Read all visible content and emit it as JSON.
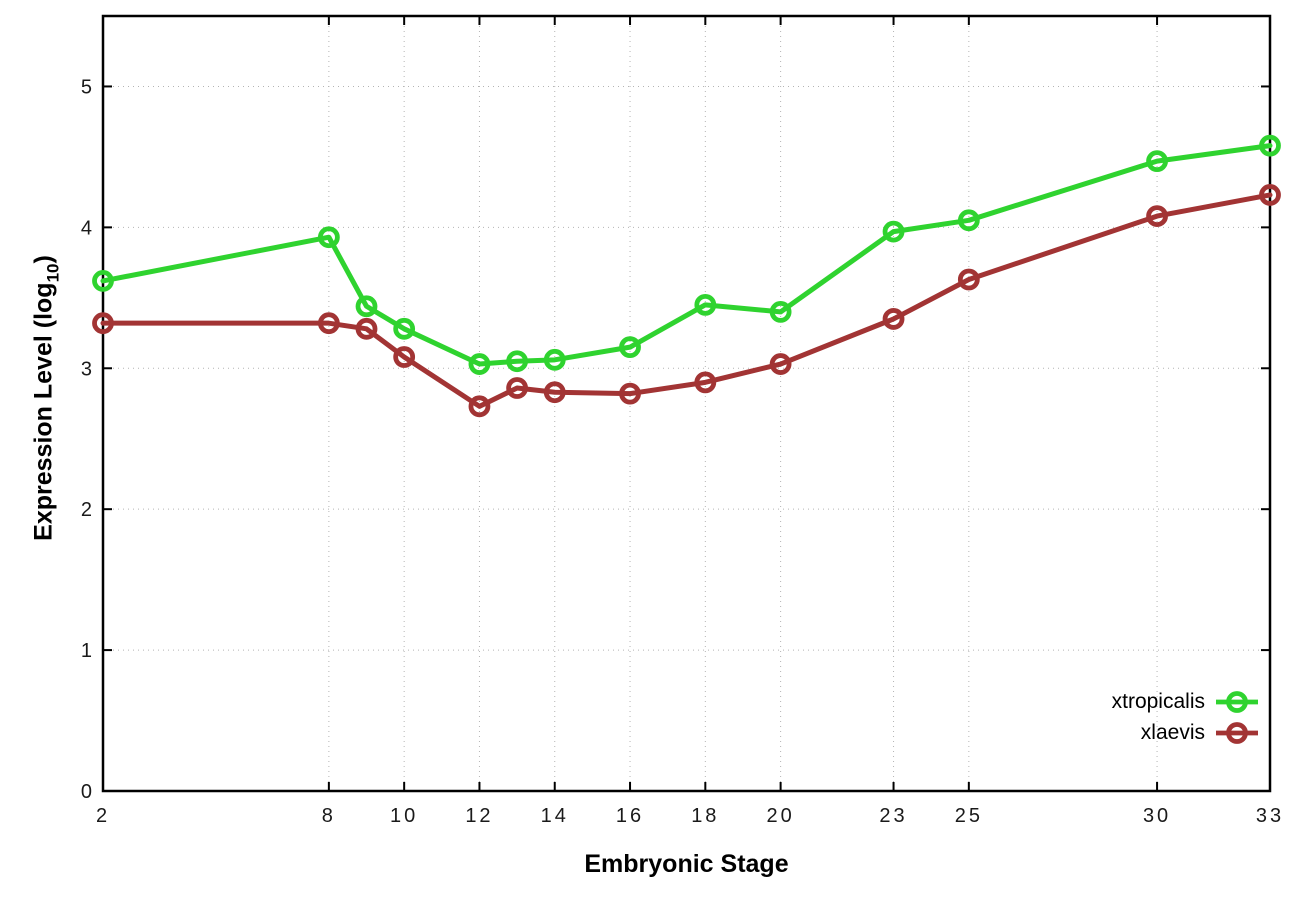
{
  "chart_data": {
    "type": "line",
    "title": "",
    "xlabel": "Embryonic Stage",
    "ylabel": "Expression Level (log10)",
    "ylabel_text": "Expression Level (log",
    "ylabel_sub": "10",
    "ylabel_suffix": ")",
    "xlim": [
      2,
      33
    ],
    "ylim": [
      0,
      5.5
    ],
    "xticks": [
      2,
      8,
      10,
      12,
      14,
      16,
      18,
      20,
      23,
      25,
      30,
      33
    ],
    "yticks": [
      0,
      1,
      2,
      3,
      4,
      5
    ],
    "grid": true,
    "legend_position": "inside bottom-right",
    "x": [
      2,
      8,
      9,
      10,
      12,
      13,
      14,
      16,
      18,
      20,
      23,
      25,
      30,
      33
    ],
    "series": [
      {
        "name": "xtropicalis",
        "color": "#2fd32f",
        "marker": "open-circle",
        "values": [
          3.62,
          3.93,
          3.44,
          3.28,
          3.03,
          3.05,
          3.06,
          3.15,
          3.45,
          3.4,
          3.97,
          4.05,
          4.47,
          4.58
        ]
      },
      {
        "name": "xlaevis",
        "color": "#a23434",
        "marker": "open-circle",
        "values": [
          3.32,
          3.32,
          3.28,
          3.08,
          2.73,
          2.86,
          2.83,
          2.82,
          2.9,
          3.03,
          3.35,
          3.63,
          4.08,
          4.23
        ]
      }
    ],
    "axis_color": "#000000",
    "grid_color": "#b4b4b4",
    "tick_label_color": "#1a1a1a"
  }
}
